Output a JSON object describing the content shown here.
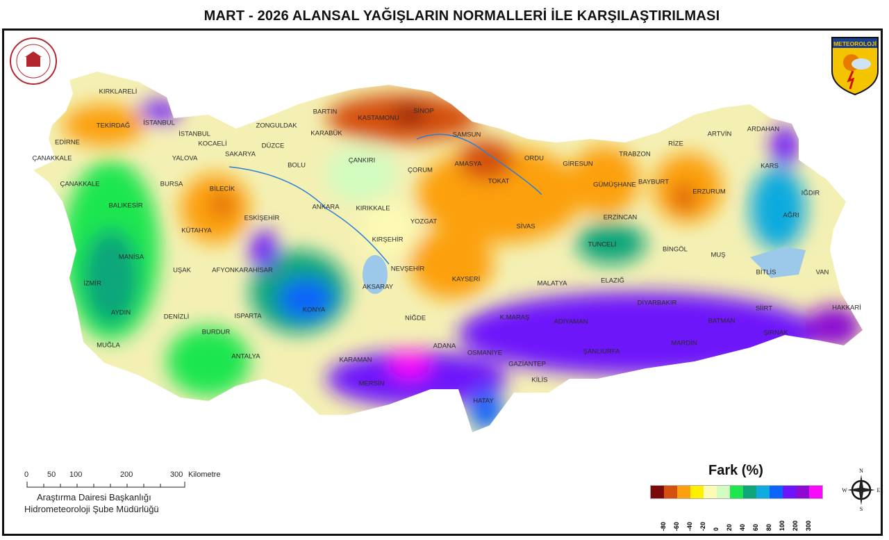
{
  "title": "MART - 2026 ALANSAL YAĞIŞLARIN NORMALLERİ İLE KARŞILAŞTIRILMASI",
  "logo_right_text": "METEOROLOJİ",
  "legend": {
    "title": "Fark (%)",
    "colors": [
      "#7a0a0a",
      "#d4500f",
      "#fca00f",
      "#fcf000",
      "#fcfab4",
      "#d2fcc0",
      "#1ee650",
      "#0ea57a",
      "#0faade",
      "#0a64fa",
      "#6e14fa",
      "#8c0ad2",
      "#fa0afa"
    ],
    "labels": [
      "-80",
      "-60",
      "-40",
      "-20",
      "0",
      "20",
      "40",
      "60",
      "80",
      "100",
      "200",
      "300"
    ]
  },
  "compass": {
    "n": "N",
    "s": "S",
    "e": "E",
    "w": "W"
  },
  "scale": {
    "ticks": [
      "0",
      "50",
      "100",
      "200",
      "300"
    ],
    "unit": "Kilometre"
  },
  "credits": [
    "Araştırma Dairesi Başkanlığı",
    "Hidrometeoroloji Şube Müdürlüğü"
  ],
  "cities": [
    "KIRKLARELİ",
    "TEKİRDAĞ",
    "EDİRNE",
    "İSTANBUL",
    "İSTANBUL",
    "ÇANAKKALE",
    "ÇANAKKALE",
    "YALOVA",
    "KOCAELİ",
    "SAKARYA",
    "DÜZCE",
    "ZONGULDAK",
    "BARTIN",
    "KARABÜK",
    "KASTAMONU",
    "SİNOP",
    "SAMSUN",
    "BOLU",
    "ÇANKIRI",
    "ÇORUM",
    "AMASYA",
    "TOKAT",
    "ORDU",
    "GİRESUN",
    "TRABZON",
    "RİZE",
    "ARTVİN",
    "ARDAHAN",
    "KARS",
    "IĞDIR",
    "AĞRI",
    "ERZURUM",
    "BAYBURT",
    "GÜMÜŞHANE",
    "ERZİNCAN",
    "BURSA",
    "BİLECİK",
    "ESKİŞEHİR",
    "ANKARA",
    "KIRIKKALE",
    "YOZGAT",
    "SİVAS",
    "BALIKESİR",
    "KÜTAHYA",
    "KIRŞEHİR",
    "TUNCELİ",
    "BİNGÖL",
    "MUŞ",
    "MANİSA",
    "UŞAK",
    "AFYONKARAHİSAR",
    "NEVŞEHİR",
    "KAYSERİ",
    "MALATYA",
    "ELAZIĞ",
    "BİTLİS",
    "VAN",
    "İZMİR",
    "AKSARAY",
    "DİYARBAKIR",
    "SİİRT",
    "HAKKARİ",
    "AYDIN",
    "DENİZLİ",
    "KONYA",
    "ISPARTA",
    "NİĞDE",
    "K.MARAŞ",
    "ADIYAMAN",
    "BATMAN",
    "ŞIRNAK",
    "BURDUR",
    "MUĞLA",
    "ADANA",
    "OSMANİYE",
    "ŞANLIURFA",
    "MARDİN",
    "GAZİANTEP",
    "KARAMAN",
    "ANTALYA",
    "MERSİN",
    "KİLİS",
    "HATAY"
  ]
}
